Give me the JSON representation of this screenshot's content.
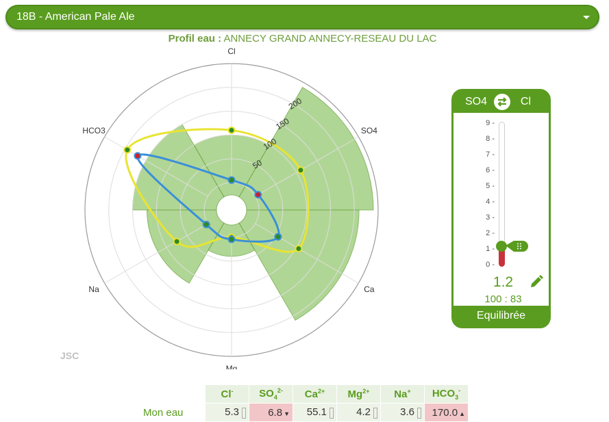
{
  "selector": {
    "label": "18B - American Pale Ale"
  },
  "profile": {
    "prefix": "Profil eau :",
    "name": "ANNECY GRAND ANNECY-RESEAU DU LAC"
  },
  "radar": {
    "axes": [
      "Cl",
      "SO4",
      "Ca",
      "Mg",
      "Na",
      "HCO3"
    ],
    "ticks": [
      "50",
      "100",
      "150",
      "200"
    ],
    "colors": {
      "bars": "#7cba4f",
      "target": "#e8e432",
      "water": "#3a8fd8"
    }
  },
  "chart_data": {
    "type": "radar",
    "axes": [
      "Cl",
      "SO4",
      "Ca",
      "Mg",
      "Na",
      "HCO3"
    ],
    "max": 250,
    "series": [
      {
        "values": [
          100,
          240,
          210,
          40,
          120,
          150
        ]
      },
      {
        "values": [
          110,
          110,
          105,
          0,
          75,
          195
        ]
      },
      {
        "values": [
          5.3,
          6.8,
          55.1,
          4.2,
          3.6,
          170.0
        ]
      }
    ]
  },
  "watermark": "JSC",
  "ratio": {
    "left": "SO4",
    "right": "Cl",
    "scale": [
      "9 -",
      "8 -",
      "7 -",
      "6 -",
      "5 -",
      "4 -",
      "3 -",
      "2 -",
      "1 -",
      "0 -"
    ],
    "value": "1.2",
    "fraction": "100 : 83",
    "status": "Equilibrée",
    "slider_level": 1.2
  },
  "ions": {
    "row_label": "Mon eau",
    "headers": [
      {
        "base": "Cl",
        "sup": "-",
        "sub": ""
      },
      {
        "base": "SO",
        "sub": "4",
        "sup": "2-"
      },
      {
        "base": "Ca",
        "sup": "2+",
        "sub": ""
      },
      {
        "base": "Mg",
        "sup": "2+",
        "sub": ""
      },
      {
        "base": "Na",
        "sup": "+",
        "sub": ""
      },
      {
        "base": "HCO",
        "sub": "3",
        "sup": "-"
      }
    ],
    "values": [
      "5.3",
      "6.8",
      "55.1",
      "4.2",
      "3.6",
      "170.0"
    ],
    "flags": [
      "",
      "▼",
      "",
      "",
      "",
      "▲"
    ]
  }
}
